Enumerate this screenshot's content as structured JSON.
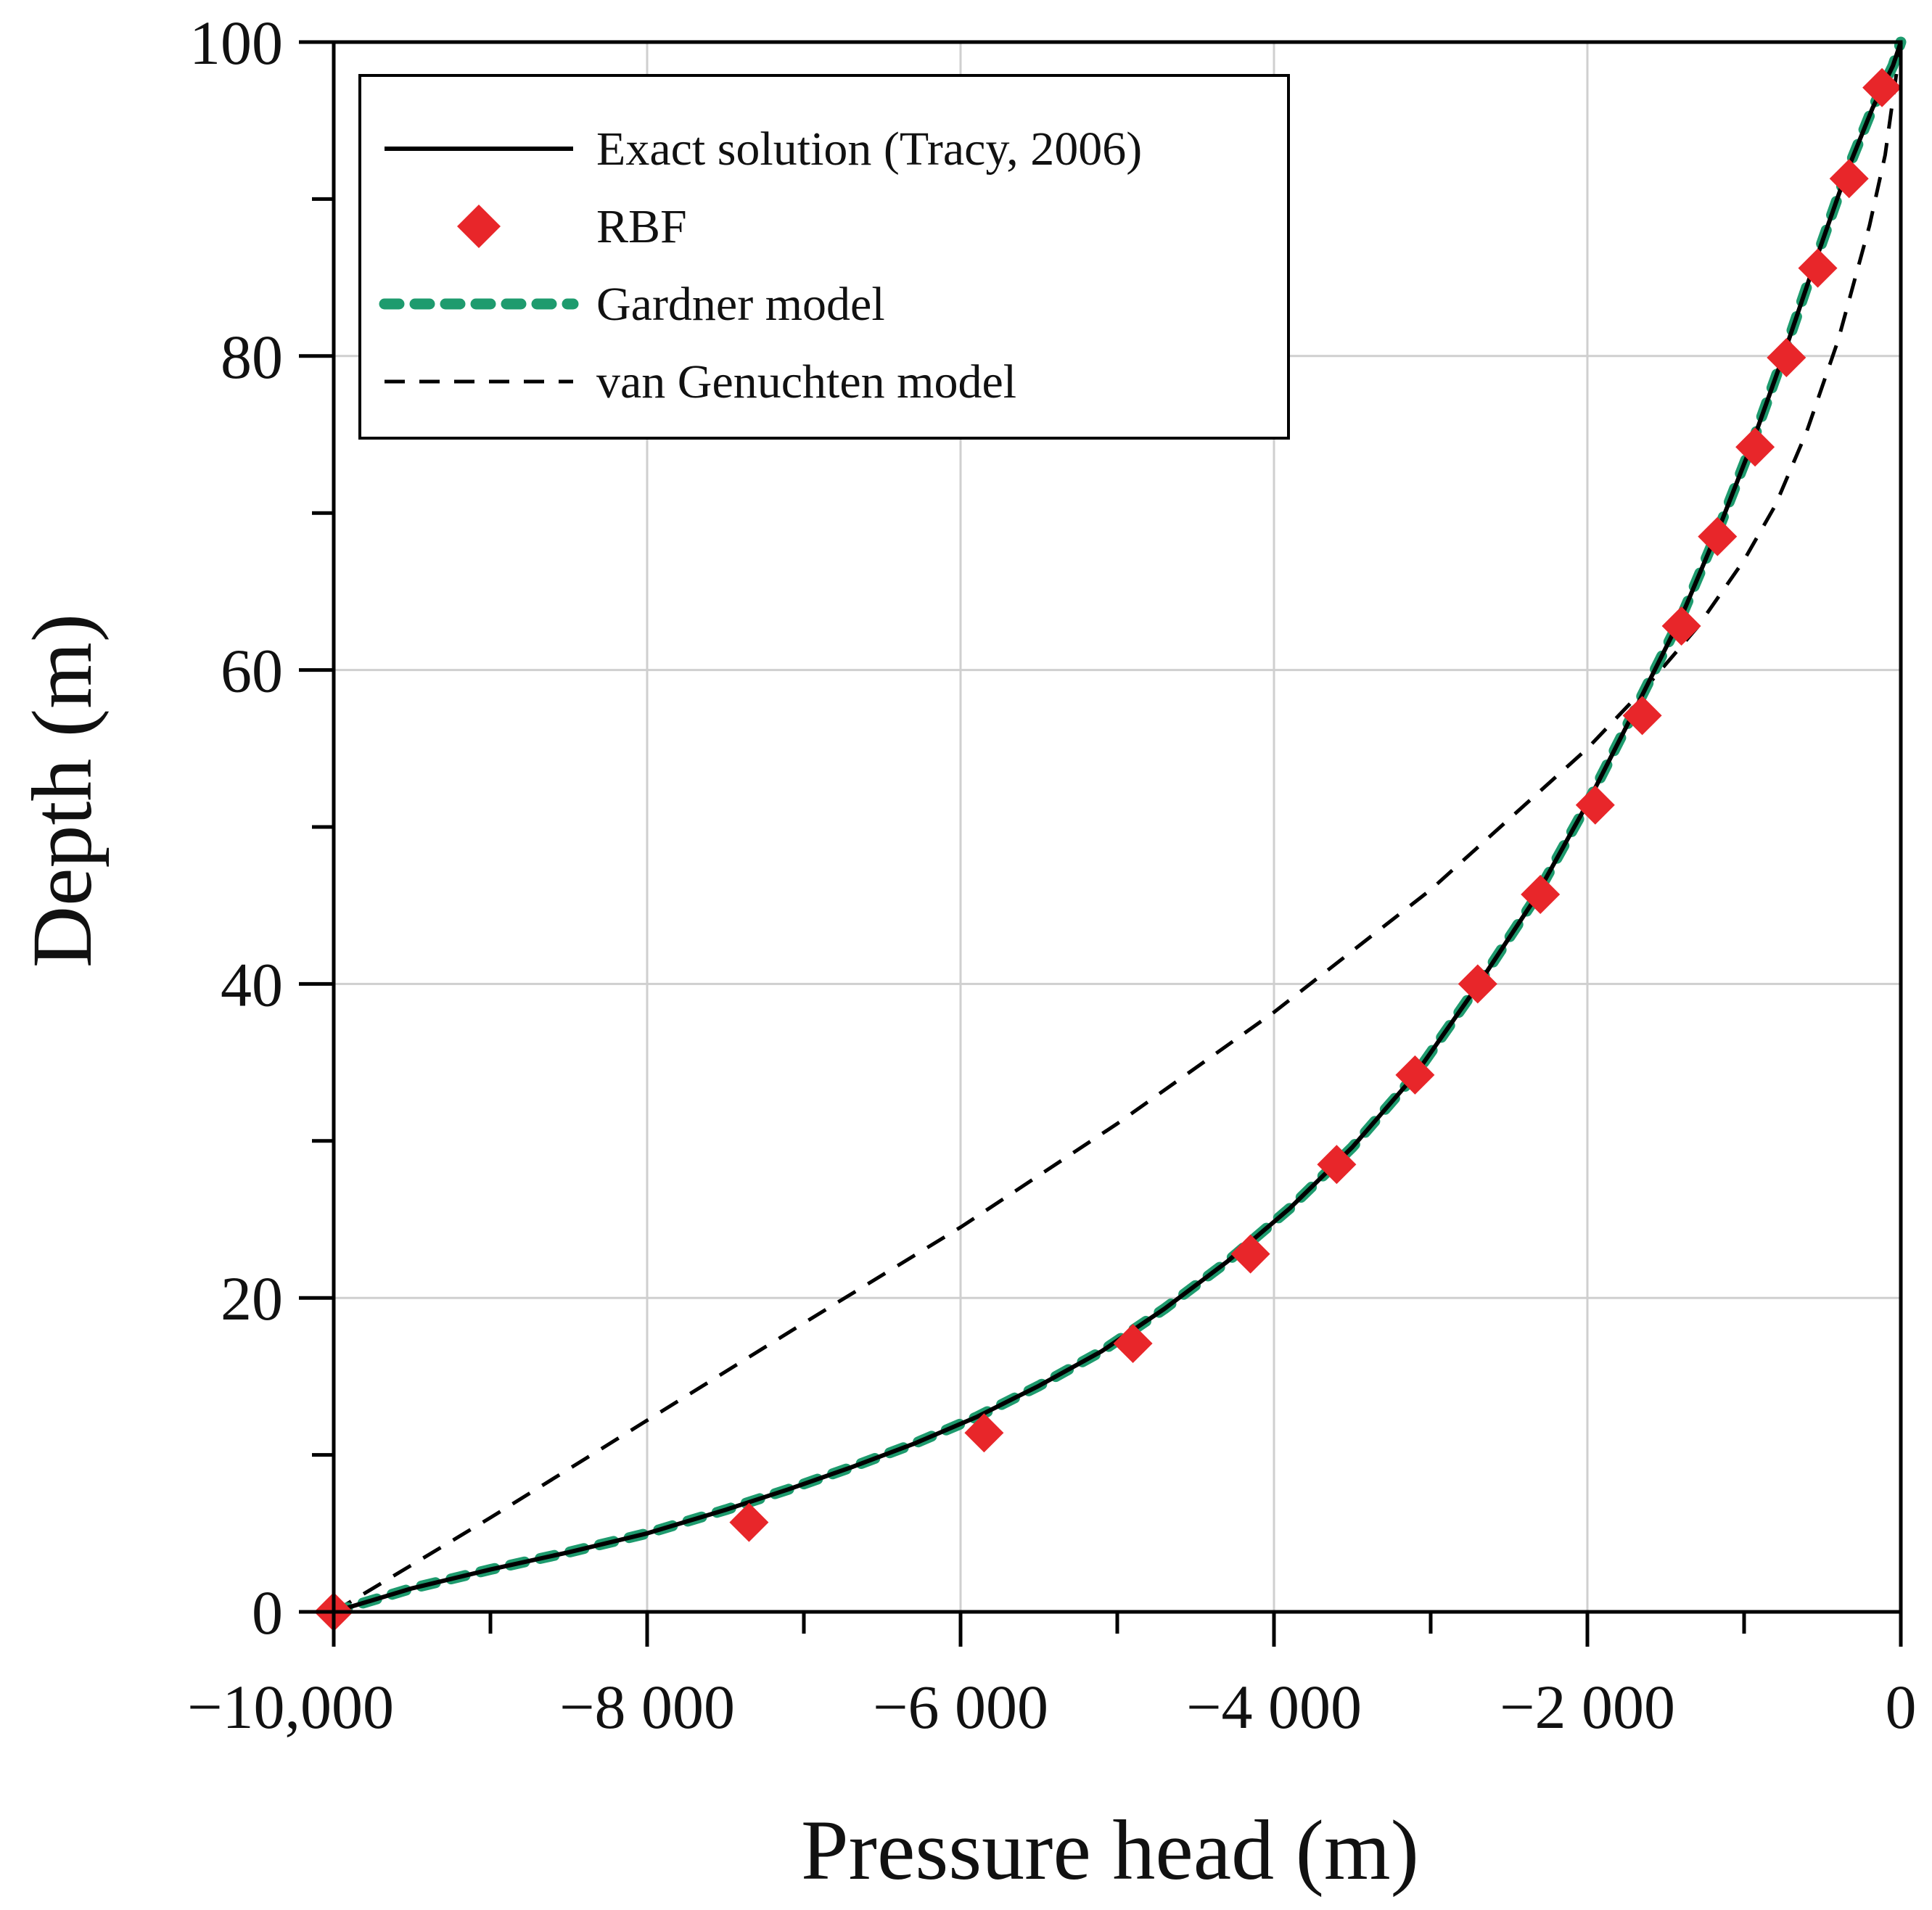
{
  "chart_data": {
    "type": "line",
    "title": "",
    "xlabel": "Pressure head (m)",
    "ylabel": "Depth (m)",
    "xlim": [
      -10000,
      0
    ],
    "ylim": [
      0,
      100
    ],
    "x_ticks": [
      {
        "value": -10000,
        "label": "−10,000"
      },
      {
        "value": -8000,
        "label": "−8 000"
      },
      {
        "value": -6000,
        "label": "−6 000"
      },
      {
        "value": -4000,
        "label": "−4 000"
      },
      {
        "value": -2000,
        "label": "−2 000"
      },
      {
        "value": 0,
        "label": "0"
      }
    ],
    "x_minor_ticks": [
      -9000,
      -7000,
      -5000,
      -3000,
      -1000
    ],
    "y_ticks": [
      {
        "value": 0,
        "label": "0"
      },
      {
        "value": 20,
        "label": "20"
      },
      {
        "value": 40,
        "label": "40"
      },
      {
        "value": 60,
        "label": "60"
      },
      {
        "value": 80,
        "label": "80"
      },
      {
        "value": 100,
        "label": "100"
      }
    ],
    "y_minor_ticks": [
      10,
      30,
      50,
      70,
      90
    ],
    "grid": true,
    "legend_position": "top-left",
    "series": [
      {
        "name": "Exact solution (Tracy, 2006)",
        "style": "solid-line",
        "color": "#000000",
        "x": [
          -10000,
          -9500,
          -9000,
          -8500,
          -8000,
          -7500,
          -7100,
          -6700,
          -6300,
          -5900,
          -5500,
          -5100,
          -4700,
          -4300,
          -3900,
          -3500,
          -3100,
          -2700,
          -2350,
          -2000,
          -1700,
          -1400,
          -1150,
          -950,
          -750,
          -550,
          -350,
          -180,
          -50,
          0
        ],
        "y": [
          0,
          1.5,
          2.7,
          3.8,
          5.0,
          6.5,
          7.8,
          9.2,
          10.7,
          12.4,
          14.4,
          16.6,
          19.3,
          22.3,
          25.7,
          29.6,
          34.2,
          39.9,
          45.2,
          51.5,
          57.4,
          63.4,
          69.3,
          74.4,
          80.0,
          85.9,
          91.6,
          95.8,
          98.5,
          100
        ]
      },
      {
        "name": "RBF",
        "style": "diamond-marker",
        "color": "#e8262a",
        "x": [
          -10000,
          -7350,
          -5850,
          -4900,
          -4150,
          -3600,
          -3100,
          -2700,
          -2300,
          -1950,
          -1650,
          -1400,
          -1170,
          -930,
          -730,
          -530,
          -330,
          -120
        ],
        "y": [
          0,
          5.7,
          11.4,
          17.1,
          22.8,
          28.5,
          34.2,
          40.0,
          45.7,
          51.4,
          57.1,
          62.8,
          68.5,
          74.2,
          79.9,
          85.6,
          91.3,
          97.1
        ]
      },
      {
        "name": "Gardner model",
        "style": "dotted-line",
        "color": "#1e9b6e",
        "x": [
          -10000,
          -9500,
          -9000,
          -8500,
          -8000,
          -7500,
          -7100,
          -6700,
          -6300,
          -5900,
          -5500,
          -5100,
          -4700,
          -4300,
          -3900,
          -3500,
          -3100,
          -2700,
          -2350,
          -2000,
          -1700,
          -1400,
          -1150,
          -950,
          -750,
          -550,
          -350,
          -180,
          -50,
          0
        ],
        "y": [
          0,
          1.5,
          2.7,
          3.8,
          5.0,
          6.5,
          7.8,
          9.2,
          10.7,
          12.4,
          14.4,
          16.6,
          19.3,
          22.3,
          25.7,
          29.6,
          34.2,
          39.9,
          45.2,
          51.5,
          57.4,
          63.4,
          69.3,
          74.4,
          80.0,
          85.9,
          91.6,
          95.8,
          98.5,
          100
        ]
      },
      {
        "name": "van Genuchten model",
        "style": "dashed-line",
        "color": "#000000",
        "x": [
          -10000,
          -9000,
          -8000,
          -7000,
          -6000,
          -5000,
          -4000,
          -3000,
          -2000,
          -1600,
          -1300,
          -1000,
          -800,
          -600,
          -400,
          -200,
          -100,
          0
        ],
        "y": [
          0,
          6.0,
          12.2,
          18.4,
          24.5,
          31.1,
          38.2,
          46.0,
          55.0,
          59.2,
          62.7,
          67.0,
          70.5,
          75.2,
          81.0,
          88.3,
          92.8,
          100
        ]
      }
    ]
  }
}
